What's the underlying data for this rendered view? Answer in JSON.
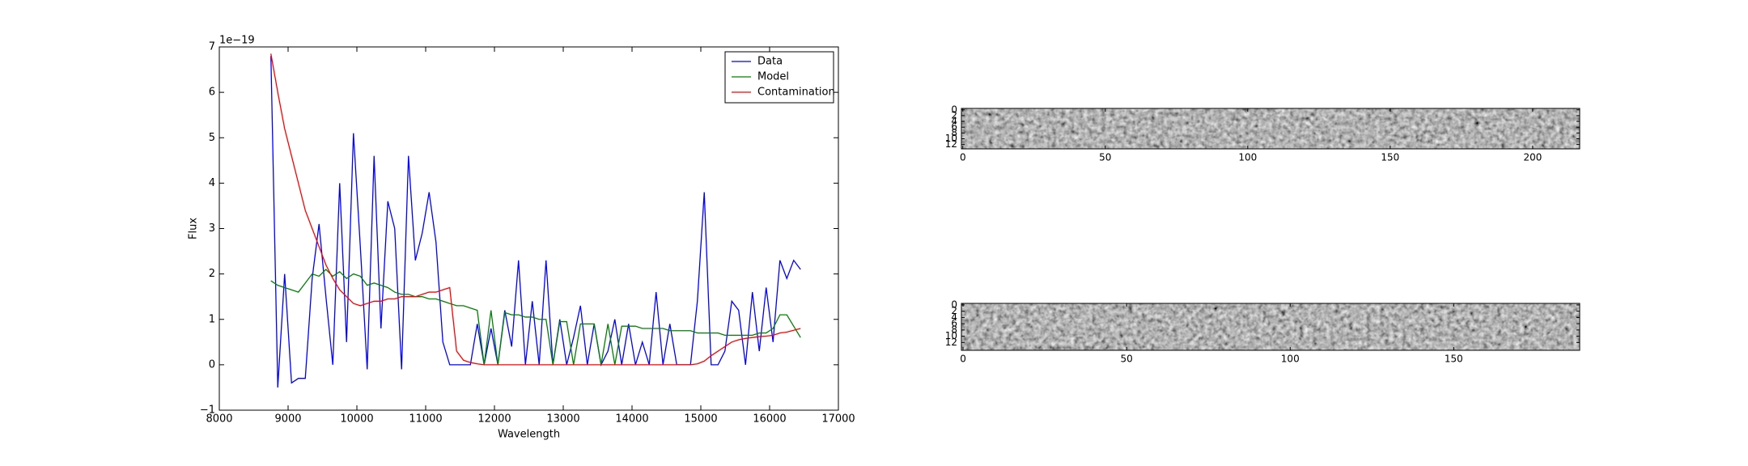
{
  "chart_data": [
    {
      "type": "line",
      "x_label": "Wavelength",
      "y_label": "Flux",
      "y_offset": "1e−19",
      "x": [
        8750,
        8850,
        8950,
        9050,
        9150,
        9250,
        9350,
        9450,
        9550,
        9650,
        9750,
        9850,
        9950,
        10050,
        10150,
        10250,
        10350,
        10450,
        10550,
        10650,
        10750,
        10850,
        10950,
        11050,
        11150,
        11250,
        11350,
        11450,
        11550,
        11650,
        11750,
        11850,
        11950,
        12050,
        12150,
        12250,
        12350,
        12450,
        12550,
        12650,
        12750,
        12850,
        12950,
        13050,
        13150,
        13250,
        13350,
        13450,
        13550,
        13650,
        13750,
        13850,
        13950,
        14050,
        14150,
        14250,
        14350,
        14450,
        14550,
        14650,
        14750,
        14850,
        14950,
        15050,
        15150,
        15250,
        15350,
        15450,
        15550,
        15650,
        15750,
        15850,
        15950,
        16050,
        16150,
        16250,
        16350,
        16450
      ],
      "series": [
        {
          "name": "Data",
          "color": "#0000ff",
          "values": [
            6.8,
            -0.5,
            2.0,
            -0.4,
            -0.3,
            -0.3,
            1.9,
            3.1,
            1.5,
            0.0,
            4.0,
            0.5,
            5.1,
            2.6,
            -0.1,
            4.6,
            0.8,
            3.6,
            3.0,
            -0.1,
            4.6,
            2.3,
            2.9,
            3.8,
            2.7,
            0.5,
            0.0,
            0.0,
            0.0,
            0.0,
            0.9,
            0.0,
            0.8,
            0.0,
            1.2,
            0.4,
            2.3,
            0.0,
            1.4,
            0.0,
            2.3,
            0.0,
            1.0,
            0.0,
            0.6,
            1.3,
            0.0,
            0.9,
            0.0,
            0.3,
            1.0,
            0.0,
            0.9,
            0.0,
            0.5,
            0.0,
            1.6,
            0.0,
            0.9,
            0.0,
            0.0,
            0.0,
            1.4,
            3.8,
            0.0,
            0.0,
            0.3,
            1.4,
            1.2,
            0.0,
            1.6,
            0.3,
            1.7,
            0.5,
            2.3,
            1.9,
            2.3,
            2.1
          ]
        },
        {
          "name": "Model",
          "color": "#008000",
          "values": [
            1.85,
            1.75,
            1.7,
            1.65,
            1.6,
            1.8,
            2.0,
            1.95,
            2.1,
            1.95,
            2.05,
            1.9,
            2.0,
            1.95,
            1.75,
            1.8,
            1.75,
            1.7,
            1.6,
            1.55,
            1.55,
            1.5,
            1.5,
            1.45,
            1.45,
            1.4,
            1.35,
            1.3,
            1.3,
            1.25,
            1.2,
            0.0,
            1.2,
            0.0,
            1.15,
            1.1,
            1.1,
            1.05,
            1.05,
            1.0,
            1.0,
            0.0,
            0.95,
            0.95,
            0.0,
            0.9,
            0.9,
            0.9,
            0.0,
            0.9,
            0.0,
            0.85,
            0.85,
            0.85,
            0.8,
            0.8,
            0.8,
            0.8,
            0.75,
            0.75,
            0.75,
            0.75,
            0.7,
            0.7,
            0.7,
            0.7,
            0.65,
            0.65,
            0.65,
            0.65,
            0.65,
            0.7,
            0.7,
            0.8,
            1.1,
            1.1,
            0.85,
            0.6
          ]
        },
        {
          "name": "Contamination",
          "color": "#ff0000",
          "values": [
            6.85,
            6.0,
            5.2,
            4.6,
            4.0,
            3.4,
            3.0,
            2.6,
            2.2,
            1.9,
            1.65,
            1.5,
            1.35,
            1.3,
            1.35,
            1.4,
            1.4,
            1.45,
            1.45,
            1.5,
            1.5,
            1.5,
            1.55,
            1.6,
            1.6,
            1.65,
            1.7,
            0.3,
            0.1,
            0.05,
            0.02,
            0,
            0,
            0,
            0,
            0,
            0,
            0,
            0,
            0,
            0,
            0,
            0,
            0,
            0,
            0,
            0,
            0,
            0,
            0,
            0,
            0,
            0,
            0,
            0,
            0,
            0,
            0,
            0,
            0,
            0,
            0,
            0.02,
            0.08,
            0.2,
            0.3,
            0.4,
            0.5,
            0.55,
            0.58,
            0.6,
            0.62,
            0.63,
            0.65,
            0.7,
            0.72,
            0.76,
            0.8
          ]
        }
      ],
      "xlim": [
        8000,
        17000
      ],
      "xticks": [
        8000,
        9000,
        10000,
        11000,
        12000,
        13000,
        14000,
        15000,
        16000,
        17000
      ],
      "ylim": [
        -1,
        7
      ],
      "yticks": [
        {
          "value": -1,
          "label": "−1"
        },
        0,
        1,
        2,
        3,
        4,
        5,
        6,
        7
      ],
      "legend": "upper right"
    },
    {
      "type": "image",
      "xlim": [
        -0.5,
        216.5
      ],
      "xticks": [
        0,
        50,
        100,
        150,
        200
      ],
      "ylim": [
        13.5,
        -0.5
      ],
      "yticks": [
        0,
        2,
        4,
        6,
        8,
        10,
        12
      ]
    },
    {
      "type": "image",
      "xlim": [
        -0.5,
        188.5
      ],
      "xticks": [
        0,
        50,
        100,
        150
      ],
      "ylim": [
        14.5,
        -0.5
      ],
      "yticks": [
        0,
        2,
        4,
        6,
        8,
        10,
        12
      ]
    }
  ]
}
